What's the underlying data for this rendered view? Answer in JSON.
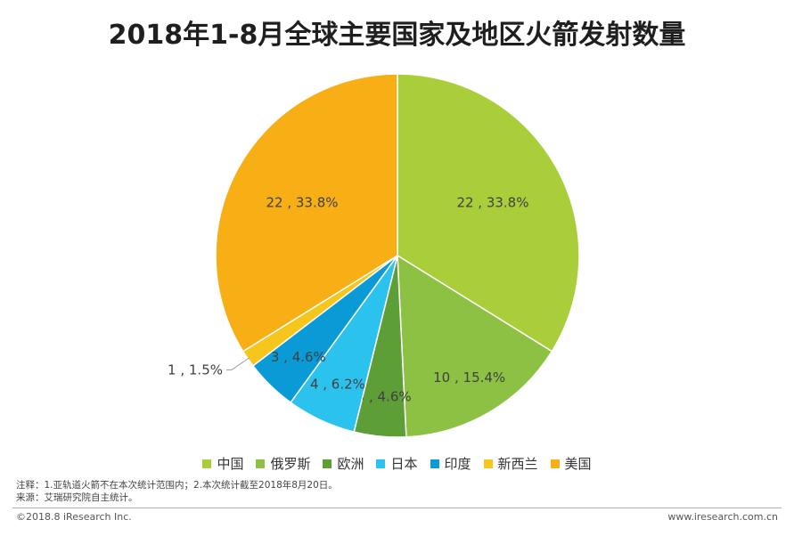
{
  "title": "2018年1-8月全球主要国家及地区火箭发射数量",
  "chart_data": {
    "type": "pie",
    "title": "2018年1-8月全球主要国家及地区火箭发射数量",
    "legend_position": "bottom",
    "slices": [
      {
        "name": "中国",
        "value": 22,
        "percent": "33.8%",
        "label": "22 , 33.8%",
        "color": "#A9CE3A"
      },
      {
        "name": "俄罗斯",
        "value": 10,
        "percent": "15.4%",
        "label": "10 , 15.4%",
        "color": "#8DC143"
      },
      {
        "name": "欧洲",
        "value": 3,
        "percent": "4.6%",
        "label": "3 , 4.6%",
        "color": "#5E9E37"
      },
      {
        "name": "日本",
        "value": 4,
        "percent": "6.2%",
        "label": "4 , 6.2%",
        "color": "#2CC2EE"
      },
      {
        "name": "印度",
        "value": 3,
        "percent": "4.6%",
        "label": "3 , 4.6%",
        "color": "#0A9AD6"
      },
      {
        "name": "新西兰",
        "value": 1,
        "percent": "1.5%",
        "label": "1 , 1.5%",
        "color": "#F6C61D"
      },
      {
        "name": "美国",
        "value": 22,
        "percent": "33.8%",
        "label": "22 , 33.8%",
        "color": "#F8AF15"
      }
    ]
  },
  "notes": {
    "line1": "注释：1.亚轨道火箭不在本次统计范围内；2.本次统计截至2018年8月20日。",
    "line2": "来源：艾瑞研究院自主统计。"
  },
  "footer": {
    "copyright": "©2018.8 iResearch Inc.",
    "website": "www.iresearch.com.cn"
  }
}
